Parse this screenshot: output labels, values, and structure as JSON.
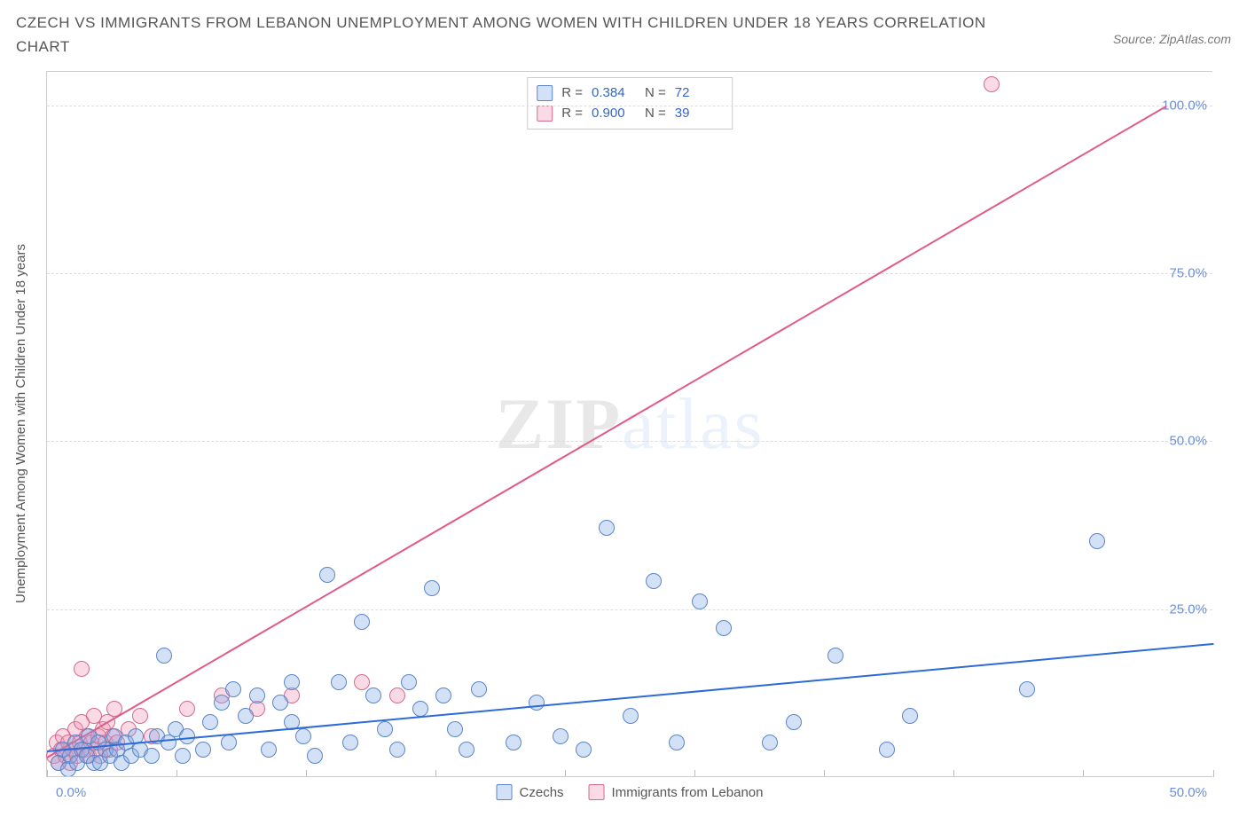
{
  "title": "CZECH VS IMMIGRANTS FROM LEBANON UNEMPLOYMENT AMONG WOMEN WITH CHILDREN UNDER 18 YEARS CORRELATION CHART",
  "source": "Source: ZipAtlas.com",
  "y_axis_label": "Unemployment Among Women with Children Under 18 years",
  "watermark": {
    "part1": "ZIP",
    "part2": "atlas"
  },
  "chart": {
    "type": "scatter",
    "xlim": [
      0,
      50
    ],
    "ylim": [
      0,
      105
    ],
    "x_ticks": [
      0.0,
      5.55,
      11.1,
      16.65,
      22.2,
      27.75,
      33.3,
      38.85,
      44.4,
      50.0
    ],
    "x_tick_labels": {
      "first": "0.0%",
      "last": "50.0%"
    },
    "y_gridlines": [
      25.0,
      50.0,
      75.0,
      100.0
    ],
    "y_tick_labels": [
      "25.0%",
      "50.0%",
      "75.0%",
      "100.0%"
    ],
    "grid_color": "#dddddd",
    "axis_color": "#cccccc",
    "background_color": "#ffffff",
    "tick_label_color": "#6b8fd4",
    "title_color": "#555555",
    "title_fontsize": 17,
    "label_fontsize": 15,
    "marker_radius": 9,
    "marker_stroke_width": 1,
    "series": {
      "czechs": {
        "label": "Czechs",
        "fill": "rgba(130,170,230,0.35)",
        "stroke": "#5b85c7",
        "R": "0.384",
        "N": "72",
        "trend": {
          "x1": 0,
          "y1": 4,
          "x2": 50,
          "y2": 20,
          "color": "#2e6bd6",
          "width": 2
        },
        "points": [
          [
            0.5,
            2
          ],
          [
            0.7,
            4
          ],
          [
            0.9,
            1
          ],
          [
            1.0,
            3
          ],
          [
            1.2,
            5
          ],
          [
            1.3,
            2
          ],
          [
            1.5,
            4
          ],
          [
            1.7,
            3
          ],
          [
            1.8,
            6
          ],
          [
            2.0,
            2
          ],
          [
            2.2,
            5
          ],
          [
            2.3,
            2
          ],
          [
            2.5,
            4
          ],
          [
            2.7,
            3
          ],
          [
            2.9,
            6
          ],
          [
            3.0,
            4
          ],
          [
            3.2,
            2
          ],
          [
            3.4,
            5
          ],
          [
            3.6,
            3
          ],
          [
            3.8,
            6
          ],
          [
            4.0,
            4
          ],
          [
            4.5,
            3
          ],
          [
            4.7,
            6
          ],
          [
            5.0,
            18
          ],
          [
            5.2,
            5
          ],
          [
            5.5,
            7
          ],
          [
            5.8,
            3
          ],
          [
            6.0,
            6
          ],
          [
            6.7,
            4
          ],
          [
            7.0,
            8
          ],
          [
            7.5,
            11
          ],
          [
            7.8,
            5
          ],
          [
            8.0,
            13
          ],
          [
            8.5,
            9
          ],
          [
            9.0,
            12
          ],
          [
            9.5,
            4
          ],
          [
            10.0,
            11
          ],
          [
            10.5,
            8
          ],
          [
            10.5,
            14
          ],
          [
            11.0,
            6
          ],
          [
            11.5,
            3
          ],
          [
            12.0,
            30
          ],
          [
            12.5,
            14
          ],
          [
            13.0,
            5
          ],
          [
            13.5,
            23
          ],
          [
            14.0,
            12
          ],
          [
            14.5,
            7
          ],
          [
            15.0,
            4
          ],
          [
            15.5,
            14
          ],
          [
            16.0,
            10
          ],
          [
            16.5,
            28
          ],
          [
            17.0,
            12
          ],
          [
            17.5,
            7
          ],
          [
            18.0,
            4
          ],
          [
            18.5,
            13
          ],
          [
            20.0,
            5
          ],
          [
            21.0,
            11
          ],
          [
            22.0,
            6
          ],
          [
            23.0,
            4
          ],
          [
            24.0,
            37
          ],
          [
            25.0,
            9
          ],
          [
            26.0,
            29
          ],
          [
            27.0,
            5
          ],
          [
            28.0,
            26
          ],
          [
            29.0,
            22
          ],
          [
            31.0,
            5
          ],
          [
            32.0,
            8
          ],
          [
            33.8,
            18
          ],
          [
            36.0,
            4
          ],
          [
            37.0,
            9
          ],
          [
            42.0,
            13
          ],
          [
            45.0,
            35
          ]
        ]
      },
      "lebanon": {
        "label": "Immigrants from Lebanon",
        "fill": "rgba(240,150,180,0.35)",
        "stroke": "#d46a8f",
        "R": "0.900",
        "N": "39",
        "trend": {
          "x1": 0,
          "y1": 3,
          "x2": 48,
          "y2": 100,
          "color": "#e05a8a",
          "width": 2
        },
        "points": [
          [
            0.3,
            3
          ],
          [
            0.4,
            5
          ],
          [
            0.5,
            2
          ],
          [
            0.6,
            4
          ],
          [
            0.7,
            6
          ],
          [
            0.8,
            3
          ],
          [
            0.9,
            5
          ],
          [
            1.0,
            2
          ],
          [
            1.1,
            4
          ],
          [
            1.2,
            7
          ],
          [
            1.3,
            3
          ],
          [
            1.4,
            5
          ],
          [
            1.5,
            8
          ],
          [
            1.6,
            4
          ],
          [
            1.7,
            6
          ],
          [
            1.8,
            3
          ],
          [
            1.9,
            5
          ],
          [
            2.0,
            9
          ],
          [
            2.1,
            4
          ],
          [
            2.2,
            6
          ],
          [
            2.3,
            3
          ],
          [
            2.4,
            7
          ],
          [
            2.5,
            5
          ],
          [
            2.6,
            8
          ],
          [
            2.7,
            4
          ],
          [
            2.8,
            6
          ],
          [
            2.9,
            10
          ],
          [
            3.0,
            5
          ],
          [
            1.5,
            16
          ],
          [
            3.5,
            7
          ],
          [
            4.0,
            9
          ],
          [
            4.5,
            6
          ],
          [
            6.0,
            10
          ],
          [
            7.5,
            12
          ],
          [
            9.0,
            10
          ],
          [
            10.5,
            12
          ],
          [
            13.5,
            14
          ],
          [
            15.0,
            12
          ],
          [
            40.5,
            103
          ]
        ]
      }
    }
  }
}
